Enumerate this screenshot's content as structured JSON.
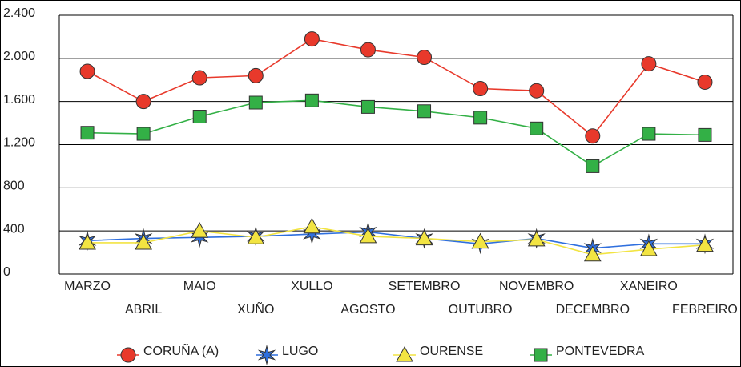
{
  "chart_data": {
    "type": "line",
    "categories": [
      "MARZO",
      "ABRIL",
      "MAIO",
      "XUÑO",
      "XULLO",
      "AGOSTO",
      "SETEMBRO",
      "OUTUBRO",
      "NOVEMBRO",
      "DECEMBRO",
      "XANEIRO",
      "FEBREIRO"
    ],
    "series": [
      {
        "name": "CORUÑA (A)",
        "color": "#e8392b",
        "marker": "circle",
        "values": [
          1880,
          1600,
          1820,
          1840,
          2180,
          2080,
          2010,
          1720,
          1700,
          1280,
          1950,
          1780
        ]
      },
      {
        "name": "LUGO",
        "color": "#2f6fde",
        "marker": "star",
        "values": [
          310,
          330,
          340,
          350,
          370,
          390,
          330,
          280,
          330,
          240,
          280,
          280
        ]
      },
      {
        "name": "OURENSE",
        "color": "#f2e442",
        "marker": "triangle",
        "values": [
          290,
          290,
          400,
          340,
          440,
          350,
          330,
          300,
          320,
          180,
          230,
          270
        ]
      },
      {
        "name": "PONTEVEDRA",
        "color": "#33b046",
        "marker": "square",
        "values": [
          1310,
          1300,
          1460,
          1590,
          1610,
          1550,
          1510,
          1450,
          1350,
          1000,
          1300,
          1290
        ]
      }
    ],
    "ylim": [
      0,
      2400
    ],
    "yticks": [
      0,
      400,
      800,
      {
        "value": 1200,
        "label": "1.200"
      },
      {
        "value": 1600,
        "label": "1.600"
      },
      {
        "value": 2000,
        "label": "2.000"
      },
      {
        "value": 2400,
        "label": "2.400"
      }
    ],
    "grid": true
  }
}
